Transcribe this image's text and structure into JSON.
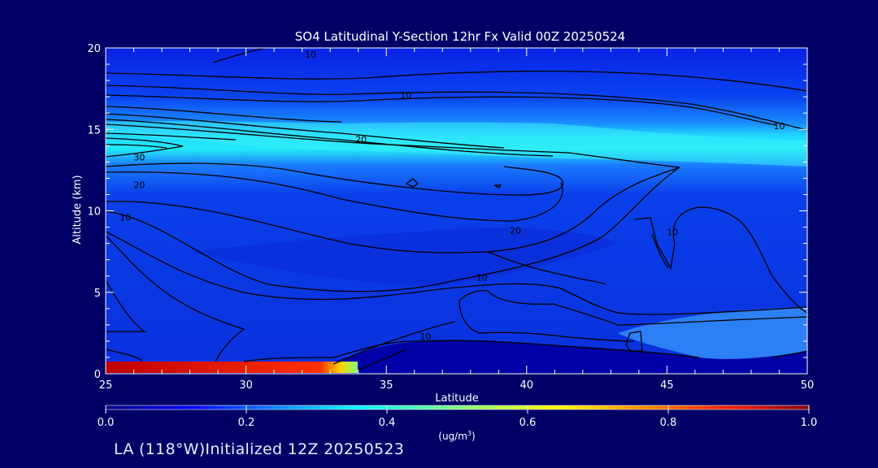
{
  "chart_data": {
    "type": "heatmap",
    "title": "SO4 Latitudinal Y-Section 12hr  Fx Valid 00Z 20250524",
    "xlabel": "Latitude",
    "ylabel": "Altitude (km)",
    "xlim": [
      25,
      50
    ],
    "ylim": [
      0,
      20
    ],
    "x_ticks": [
      25,
      30,
      35,
      40,
      45,
      50
    ],
    "y_ticks": [
      0,
      5,
      10,
      15,
      20
    ],
    "x_tick_labels": [
      "25",
      "30",
      "35",
      "40",
      "45",
      "50"
    ],
    "y_tick_labels": [
      "0",
      "5",
      "10",
      "15",
      "20"
    ],
    "colorbar": {
      "min": 0.0,
      "max": 1.0,
      "tick_values": [
        0.0,
        0.2,
        0.4,
        0.6,
        0.8,
        1.0
      ],
      "tick_labels": [
        "0.0",
        "0.2",
        "0.4",
        "0.6",
        "0.8",
        "1.0"
      ],
      "unit_label": "(ug/m",
      "unit_sup": "3",
      "unit_close": ")"
    },
    "contour_labels": [
      {
        "text": "10",
        "x": 32.3,
        "y": 19.6
      },
      {
        "text": "10",
        "x": 35.7,
        "y": 17.1
      },
      {
        "text": "10",
        "x": 49.0,
        "y": 15.2
      },
      {
        "text": "20",
        "x": 34.1,
        "y": 14.4
      },
      {
        "text": "30",
        "x": 26.2,
        "y": 13.3
      },
      {
        "text": "20",
        "x": 26.2,
        "y": 11.6
      },
      {
        "text": "10",
        "x": 25.7,
        "y": 9.6
      },
      {
        "text": "20",
        "x": 39.6,
        "y": 8.8
      },
      {
        "text": "10",
        "x": 38.4,
        "y": 5.9
      },
      {
        "text": "10",
        "x": 36.4,
        "y": 2.3
      },
      {
        "text": "10",
        "x": 45.2,
        "y": 8.7
      }
    ]
  },
  "footer": {
    "text": "LA (118°W)Initialized 12Z 20250523"
  },
  "colors": {
    "background": "#000066",
    "low": "#0000b0",
    "mid": "#0060ff",
    "high": "#20f0e0",
    "peak": "#c00000"
  }
}
